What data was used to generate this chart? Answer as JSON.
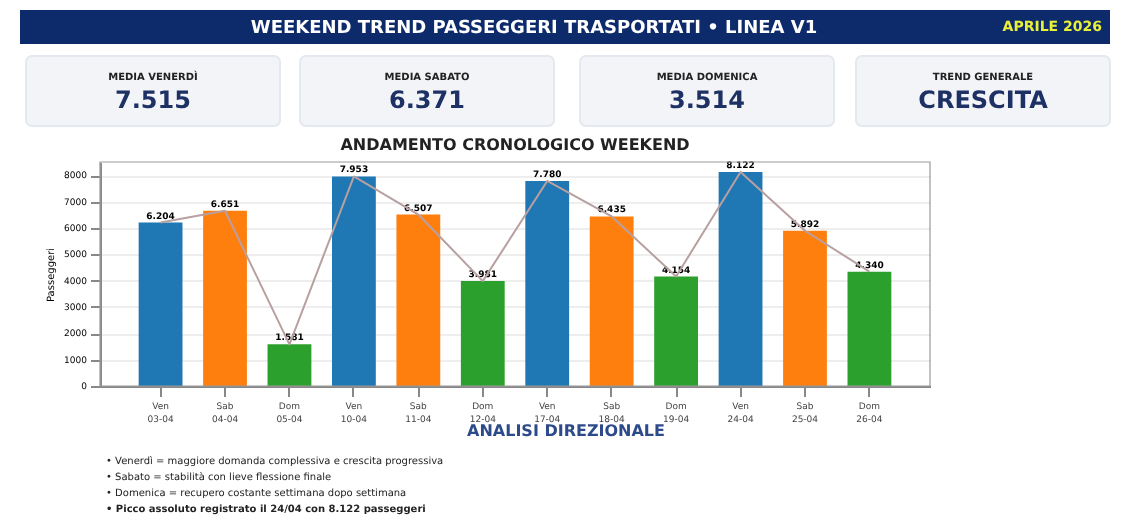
{
  "chart_data": {
    "type": "bar",
    "title": "ANDAMENTO CRONOLOGICO WEEKEND",
    "ylabel": "Passeggeri",
    "categories": [
      "Ven 03-04",
      "Sab 04-04",
      "Dom 05-04",
      "Ven 10-04",
      "Sab 11-04",
      "Dom 12-04",
      "Ven 17-04",
      "Sab 18-04",
      "Dom 19-04",
      "Ven 24-04",
      "Sab 25-04",
      "Dom 26-04"
    ],
    "series": [
      {
        "type": "bar",
        "colors": [
          "#1f77b4",
          "#ff7f0e",
          "#2ca02c",
          "#1f77b4",
          "#ff7f0e",
          "#2ca02c",
          "#1f77b4",
          "#ff7f0e",
          "#2ca02c",
          "#1f77b4",
          "#ff7f0e",
          "#2ca02c"
        ],
        "values": [
          6204,
          6651,
          1581,
          7953,
          6507,
          3981,
          7780,
          6435,
          4154,
          8122,
          5892,
          4340
        ],
        "value_labels": [
          "6.204",
          "6.651",
          "1.581",
          "7.953",
          "6.507",
          "3.981",
          "7.780",
          "6.435",
          "4.154",
          "8.122",
          "5.892",
          "4.340"
        ]
      },
      {
        "type": "line",
        "color": "#b8a0a0",
        "values": [
          6204,
          6651,
          1581,
          7953,
          6507,
          3981,
          7780,
          6435,
          4154,
          8122,
          5892,
          4340
        ]
      }
    ],
    "ylim": [
      0,
      8500
    ],
    "yticks": [
      0,
      1000,
      2000,
      3000,
      4000,
      5000,
      6000,
      7000,
      8000
    ],
    "grid": "y",
    "annotations": [
      "WEEKEND TREND PASSEGGERI TRASPORTATI • LINEA V1",
      "APRILE 2026",
      "MEDIA VENERDÌ",
      "7.515",
      "MEDIA SABATO",
      "6.371",
      "MEDIA DOMENICA",
      "3.514",
      "TREND GENERALE",
      "CRESCITA",
      "ANALISI DIREZIONALE",
      "• Venerdì = maggiore domanda complessiva e crescita progressiva",
      "• Sabato = stabilità con lieve flessione finale",
      "• Domenica = recupero costante settimana dopo settimana",
      "• Picco assoluto registrato il 24/04 con 8.122 passeggeri"
    ]
  }
}
